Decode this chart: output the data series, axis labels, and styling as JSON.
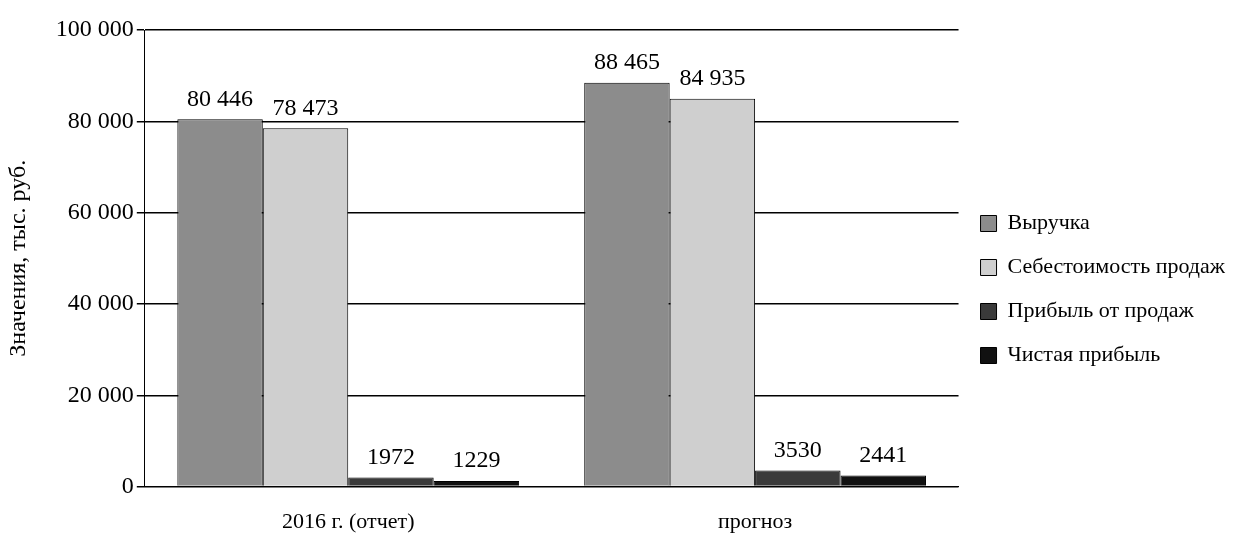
{
  "chart_data": {
    "type": "bar",
    "ylabel": "Значения, тыс. руб.",
    "categories": [
      "2016 г. (отчет)",
      "прогноз"
    ],
    "series": [
      {
        "name": "Выручка",
        "color": "#8c8c8c",
        "values": [
          80446,
          88465
        ],
        "value_labels": [
          "80 446",
          "88 465"
        ]
      },
      {
        "name": "Себестоимость продаж",
        "color": "#cfcfcf",
        "values": [
          78473,
          84935
        ],
        "value_labels": [
          "78 473",
          "84 935"
        ]
      },
      {
        "name": "Прибыль от продаж",
        "color": "#3a3a3a",
        "values": [
          1972,
          3530
        ],
        "value_labels": [
          "1972",
          "3530"
        ]
      },
      {
        "name": "Чистая прибыль",
        "color": "#111111",
        "values": [
          1229,
          2441
        ],
        "value_labels": [
          "1229",
          "2441"
        ]
      }
    ],
    "ylim": [
      0,
      100000
    ],
    "yticks": [
      {
        "value": 0,
        "label": "0"
      },
      {
        "value": 20000,
        "label": "20 000"
      },
      {
        "value": 40000,
        "label": "40 000"
      },
      {
        "value": 60000,
        "label": "60 000"
      },
      {
        "value": 80000,
        "label": "80 000"
      },
      {
        "value": 100000,
        "label": "100 000"
      }
    ],
    "grid": "y",
    "legend": "right"
  }
}
